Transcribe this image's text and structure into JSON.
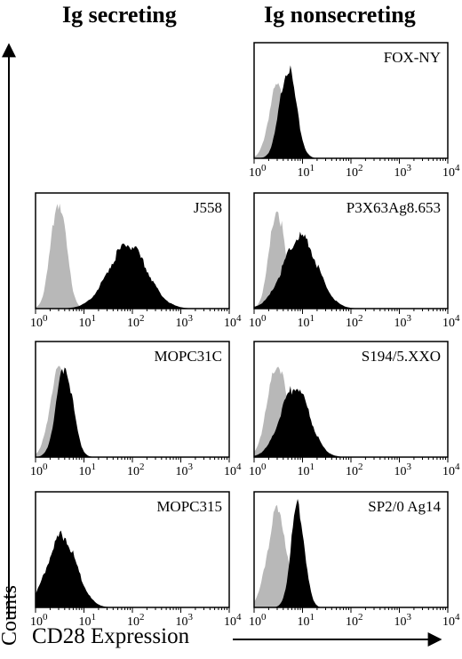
{
  "headers": {
    "left": "Ig secreting",
    "right": "Ig nonsecreting"
  },
  "axes": {
    "y_label": "Counts",
    "x_label": "CD28 Expression"
  },
  "colors": {
    "stained": "#000000",
    "control": "#b8b8b8",
    "frame": "#000000"
  },
  "chart_data": [
    {
      "type": "area",
      "title": "FOX-NY",
      "xscale": "log",
      "xlim": [
        1,
        10000
      ],
      "xticks": [
        "10^0",
        "10^1",
        "10^2",
        "10^3",
        "10^4"
      ],
      "series": [
        {
          "role": "control",
          "peak_x": 3,
          "width": 0.17,
          "max": 0.62
        },
        {
          "role": "stained",
          "peak_x": 5,
          "width": 0.17,
          "max": 0.78
        }
      ]
    },
    {
      "type": "area",
      "title": "J558",
      "xscale": "log",
      "xlim": [
        1,
        10000
      ],
      "xticks": [
        "10^0",
        "10^1",
        "10^2",
        "10^3",
        "10^4"
      ],
      "series": [
        {
          "role": "control",
          "peak_x": 3,
          "width": 0.16,
          "max": 0.92
        },
        {
          "role": "stained",
          "peak_x": 80,
          "width": 0.4,
          "max": 0.55
        }
      ]
    },
    {
      "type": "area",
      "title": "MOPC31C",
      "xscale": "log",
      "xlim": [
        1,
        10000
      ],
      "xticks": [
        "10^0",
        "10^1",
        "10^2",
        "10^3",
        "10^4"
      ],
      "series": [
        {
          "role": "control",
          "peak_x": 3,
          "width": 0.18,
          "max": 0.75
        },
        {
          "role": "stained",
          "peak_x": 4,
          "width": 0.17,
          "max": 0.78
        }
      ]
    },
    {
      "type": "area",
      "title": "P3X63Ag8.653",
      "xscale": "log",
      "xlim": [
        1,
        10000
      ],
      "xticks": [
        "10^0",
        "10^1",
        "10^2",
        "10^3",
        "10^4"
      ],
      "series": [
        {
          "role": "control",
          "peak_x": 3,
          "width": 0.16,
          "max": 0.85
        },
        {
          "role": "stained",
          "peak_x": 9,
          "width": 0.35,
          "max": 0.62
        }
      ]
    },
    {
      "type": "area",
      "title": "MOPC315",
      "xscale": "log",
      "xlim": [
        1,
        10000
      ],
      "xticks": [
        "10^0",
        "10^1",
        "10^2",
        "10^3",
        "10^4"
      ],
      "series": [
        {
          "role": "control",
          "peak_x": 3,
          "width": 0.25,
          "max": 0.55
        },
        {
          "role": "stained",
          "peak_x": 3.5,
          "width": 0.3,
          "max": 0.62
        }
      ]
    },
    {
      "type": "area",
      "title": "S194/5.XXO",
      "xscale": "log",
      "xlim": [
        1,
        10000
      ],
      "xticks": [
        "10^0",
        "10^1",
        "10^2",
        "10^3",
        "10^4"
      ],
      "series": [
        {
          "role": "control",
          "peak_x": 3,
          "width": 0.2,
          "max": 0.8
        },
        {
          "role": "stained",
          "peak_x": 7,
          "width": 0.3,
          "max": 0.6
        }
      ]
    },
    {
      "type": "area",
      "title": "SP2/0 Ag14",
      "xscale": "log",
      "xlim": [
        1,
        10000
      ],
      "xticks": [
        "10^0",
        "10^1",
        "10^2",
        "10^3",
        "10^4"
      ],
      "series": [
        {
          "role": "control",
          "peak_x": 3,
          "width": 0.2,
          "max": 0.82
        },
        {
          "role": "stained",
          "peak_x": 8,
          "width": 0.14,
          "max": 0.88
        }
      ]
    }
  ]
}
